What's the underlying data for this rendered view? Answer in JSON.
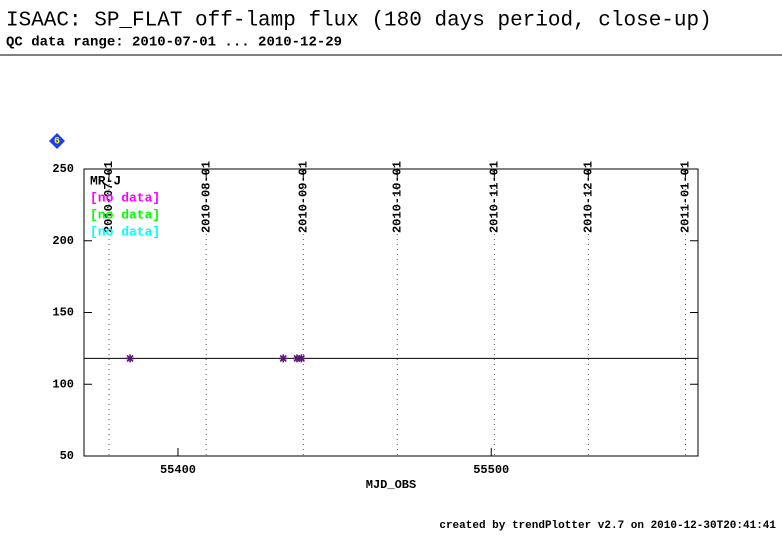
{
  "chart_data": {
    "type": "scatter",
    "title": "ISAAC: SP_FLAT off-lamp flux (180 days period, close-up)",
    "subtitle": "QC data range: 2010-07-01 ... 2010-12-29",
    "badge": "6",
    "x_label": "MJD_OBS",
    "footer": "created by trendPlotter v2.7 on 2010-12-30T20:41:41",
    "xlim": [
      55370,
      55566
    ],
    "ylim": [
      50,
      250
    ],
    "xticks": [
      55400,
      55500
    ],
    "yticks": [
      50,
      100,
      150,
      200,
      250
    ],
    "date_ticks": [
      {
        "value": 55378,
        "label": "2010-07-01"
      },
      {
        "value": 55409,
        "label": "2010-08-01"
      },
      {
        "value": 55440,
        "label": "2010-09-01"
      },
      {
        "value": 55470,
        "label": "2010-10-01"
      },
      {
        "value": 55501,
        "label": "2010-11-01"
      },
      {
        "value": 55531,
        "label": "2010-12-01"
      },
      {
        "value": 55562,
        "label": "2011-01-01"
      }
    ],
    "reference_line": 118,
    "series": [
      {
        "name": "MR-J",
        "color": "#5a1670",
        "x": [
          55384.7,
          55433.6,
          55438,
          55439.4
        ],
        "values": [
          118,
          118,
          118,
          118
        ]
      },
      {
        "name": "[no data]",
        "color": "#ff00ff",
        "x": [],
        "values": []
      },
      {
        "name": "[no data]",
        "color": "#00ff00",
        "x": [],
        "values": []
      },
      {
        "name": "[no data]",
        "color": "#00ffff",
        "x": [],
        "values": []
      }
    ]
  }
}
